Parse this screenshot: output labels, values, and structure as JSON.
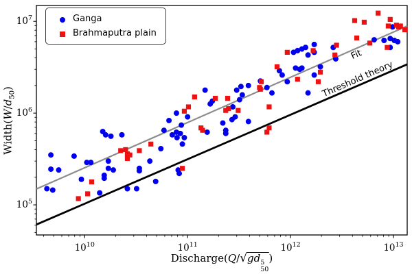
{
  "chart_data": {
    "type": "scatter",
    "title": "",
    "xlabel": "Discharge(Q/sqrt(g d50^5))",
    "ylabel": "Width(W/d50)",
    "grid": false,
    "legend_position": "upper left",
    "x_axis": {
      "scale": "log",
      "min": 3400000000.0,
      "max": 13600000000000.0,
      "tick_base": "10",
      "major_tick_values": [
        10000000000.0,
        100000000000.0,
        1000000000000.0,
        10000000000000.0
      ],
      "major_tick_exponents": [
        "10",
        "11",
        "12",
        "13"
      ]
    },
    "y_axis": {
      "scale": "log",
      "min": 47000.0,
      "max": 14900000.0,
      "tick_base": "10",
      "major_tick_values": [
        100000.0,
        1000000.0,
        10000000.0
      ],
      "major_tick_exponents": [
        "5",
        "6",
        "7"
      ]
    },
    "series": [
      {
        "name": "Ganga",
        "marker": "circle",
        "color": "#0000ee",
        "points": [
          [
            4700000000.0,
            350000.0
          ],
          [
            7900000000.0,
            340000.0
          ],
          [
            10500000000.0,
            290000.0
          ],
          [
            11500000000.0,
            290000.0
          ],
          [
            15000000000.0,
            630000.0
          ],
          [
            16000000000.0,
            580000.0
          ],
          [
            18000000000.0,
            560000.0
          ],
          [
            23000000000.0,
            580000.0
          ],
          [
            17000000000.0,
            300000.0
          ],
          [
            17000000000.0,
            250000.0
          ],
          [
            19000000000.0,
            240000.0
          ],
          [
            4700000000.0,
            245000.0
          ],
          [
            5600000000.0,
            240000.0
          ],
          [
            15500000000.0,
            210000.0
          ],
          [
            4300000000.0,
            150000.0
          ],
          [
            4900000000.0,
            145000.0
          ],
          [
            9300000000.0,
            190000.0
          ],
          [
            15500000000.0,
            195000.0
          ],
          [
            14000000000.0,
            135000.0
          ],
          [
            26000000000.0,
            150000.0
          ],
          [
            32000000000.0,
            150000.0
          ],
          [
            49000000000.0,
            180000.0
          ],
          [
            83000000000.0,
            220000.0
          ],
          [
            78000000000.0,
            1000000.0
          ],
          [
            166000000000.0,
            1260000.0
          ],
          [
            100000000000.0,
            910000.0
          ],
          [
            66000000000.0,
            830000.0
          ],
          [
            220000000000.0,
            780000.0
          ],
          [
            87000000000.0,
            740000.0
          ],
          [
            59000000000.0,
            650000.0
          ],
          [
            78000000000.0,
            620000.0
          ],
          [
            85000000000.0,
            600000.0
          ],
          [
            71000000000.0,
            580000.0
          ],
          [
            79000000000.0,
            540000.0
          ],
          [
            93000000000.0,
            540000.0
          ],
          [
            155000000000.0,
            620000.0
          ],
          [
            89000000000.0,
            460000.0
          ],
          [
            55000000000.0,
            410000.0
          ],
          [
            43000000000.0,
            300000.0
          ],
          [
            34000000000.0,
            250000.0
          ],
          [
            34000000000.0,
            235000.0
          ],
          [
            81000000000.0,
            240000.0
          ],
          [
            148000000000.0,
            1780000.0
          ],
          [
            174000000000.0,
            1350000.0
          ],
          [
            1070000000000.0,
            4600000.0
          ],
          [
            1170000000000.0,
            4800000.0
          ],
          [
            1290000000000.0,
            5000000.0
          ],
          [
            1400000000000.0,
            5200000.0
          ],
          [
            1480000000000.0,
            4300000.0
          ],
          [
            1700000000000.0,
            4600000.0
          ],
          [
            1700000000000.0,
            5600000.0
          ],
          [
            780000000000.0,
            2900000.0
          ],
          [
            1120000000000.0,
            3100000.0
          ],
          [
            1230000000000.0,
            3000000.0
          ],
          [
            1290000000000.0,
            3100000.0
          ],
          [
            830000000000.0,
            2600000.0
          ],
          [
            930000000000.0,
            2200000.0
          ],
          [
            510000000000.0,
            2240000.0
          ],
          [
            390000000000.0,
            2000000.0
          ],
          [
            330000000000.0,
            1950000.0
          ],
          [
            300000000000.0,
            1780000.0
          ],
          [
            340000000000.0,
            1580000.0
          ],
          [
            320000000000.0,
            1400000.0
          ],
          [
            275000000000.0,
            1170000.0
          ],
          [
            590000000000.0,
            1900000.0
          ],
          [
            660000000000.0,
            1660000.0
          ],
          [
            1480000000000.0,
            1660000.0
          ],
          [
            290000000000.0,
            910000.0
          ],
          [
            270000000000.0,
            850000.0
          ],
          [
            235000000000.0,
            650000.0
          ],
          [
            235000000000.0,
            600000.0
          ],
          [
            390000000000.0,
            810000.0
          ],
          [
            9800000000000.0,
            8700000.0
          ],
          [
            6500000000000.0,
            6300000.0
          ],
          [
            8100000000000.0,
            6200000.0
          ],
          [
            9300000000000.0,
            6500000.0
          ],
          [
            10200000000000.0,
            6200000.0
          ],
          [
            11000000000000.0,
            6000000.0
          ],
          [
            9300000000000.0,
            5200000.0
          ],
          [
            2600000000000.0,
            5200000.0
          ],
          [
            2750000000000.0,
            3900000.0
          ],
          [
            1950000000000.0,
            3200000.0
          ],
          [
            1700000000000.0,
            2600000.0
          ]
        ]
      },
      {
        "name": "Brahmaputra plain",
        "marker": "square",
        "color": "#ee1111",
        "points": [
          [
            22400000000.0,
            390000.0
          ],
          [
            25000000000.0,
            400000.0
          ],
          [
            26000000000.0,
            360000.0
          ],
          [
            11700000000.0,
            178000.0
          ],
          [
            10700000000.0,
            132000.0
          ],
          [
            8700000000.0,
            117000.0
          ],
          [
            102000000000.0,
            1170000.0
          ],
          [
            93000000000.0,
            1050000.0
          ],
          [
            135000000000.0,
            690000.0
          ],
          [
            140000000000.0,
            650000.0
          ],
          [
            44000000000.0,
            460000.0
          ],
          [
            34000000000.0,
            390000.0
          ],
          [
            27500000000.0,
            350000.0
          ],
          [
            26000000000.0,
            320000.0
          ],
          [
            89000000000.0,
            250000.0
          ],
          [
            117000000000.0,
            1500000.0
          ],
          [
            186000000000.0,
            1450000.0
          ],
          [
            930000000000.0,
            4600000.0
          ],
          [
            740000000000.0,
            3200000.0
          ],
          [
            1170000000000.0,
            2340000.0
          ],
          [
            520000000000.0,
            2200000.0
          ],
          [
            500000000000.0,
            1900000.0
          ],
          [
            510000000000.0,
            1820000.0
          ],
          [
            245000000000.0,
            1450000.0
          ],
          [
            250000000000.0,
            1120000.0
          ],
          [
            235000000000.0,
            1070000.0
          ],
          [
            310000000000.0,
            1070000.0
          ],
          [
            620000000000.0,
            1170000.0
          ],
          [
            620000000000.0,
            690000.0
          ],
          [
            590000000000.0,
            620000.0
          ],
          [
            7100000000000.0,
            12300000.0
          ],
          [
            4200000000000.0,
            10200000.0
          ],
          [
            5200000000000.0,
            9800000.0
          ],
          [
            9300000000000.0,
            10500000.0
          ],
          [
            8900000000000.0,
            8900000.0
          ],
          [
            10700000000000.0,
            9100000.0
          ],
          [
            11200000000000.0,
            8700000.0
          ],
          [
            11700000000000.0,
            8900000.0
          ],
          [
            12900000000000.0,
            8100000.0
          ],
          [
            4400000000000.0,
            6600000.0
          ],
          [
            5900000000000.0,
            5800000.0
          ],
          [
            8700000000000.0,
            5200000.0
          ],
          [
            1660000000000.0,
            4800000.0
          ],
          [
            2800000000000.0,
            5500000.0
          ],
          [
            2700000000000.0,
            4300000.0
          ],
          [
            1950000000000.0,
            2800000.0
          ],
          [
            1860000000000.0,
            2200000.0
          ]
        ]
      }
    ],
    "lines": [
      {
        "label": "Fit",
        "color": "#8c8c8c",
        "width": 2.2,
        "x": [
          3400000000.0,
          13600000000000.0
        ],
        "y": [
          149000.0,
          8900000.0
        ]
      },
      {
        "label": "Threshold theory",
        "color": "#000000",
        "width": 2.8,
        "x": [
          3400000000.0,
          13600000000000.0
        ],
        "y": [
          61000.0,
          3400000.0
        ]
      }
    ]
  },
  "legend": {
    "items": [
      {
        "label": "Ganga",
        "marker": "circle-icon",
        "color": "#0000ee"
      },
      {
        "label": "Brahmaputra plain",
        "marker": "square-icon",
        "color": "#ee1111"
      }
    ]
  },
  "labels": {
    "xlabel_parts": {
      "prefix": "Discharge(",
      "var1": "Q",
      "slash": "/",
      "radical": "√",
      "radicand": "gd",
      "sup": "5",
      "sub": "50",
      "suffix": ")"
    },
    "ylabel_parts": {
      "prefix": "Width(",
      "var1": "W",
      "slash": "/",
      "var2": "d",
      "sub": "50",
      "suffix": ")"
    }
  }
}
